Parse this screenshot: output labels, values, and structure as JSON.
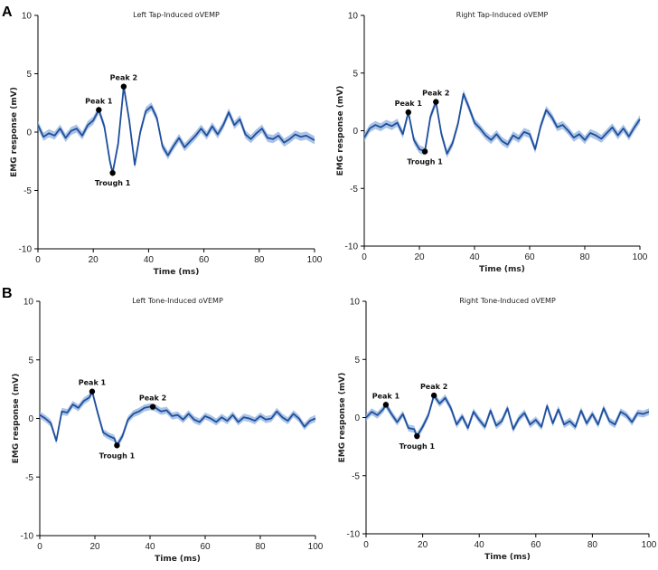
{
  "figure": {
    "panel_labels": [
      "A",
      "B"
    ]
  },
  "chart_data": [
    {
      "id": "left-tap",
      "panel": "A",
      "type": "line",
      "title": "Left Tap-Induced oVEMP",
      "xlabel": "Time (ms)",
      "ylabel": "EMG response (mV)",
      "xlim": [
        0,
        100
      ],
      "ylim": [
        -10,
        10
      ],
      "xticks": [
        0,
        20,
        40,
        60,
        80,
        100
      ],
      "yticks": [
        -10,
        -5,
        0,
        5,
        10
      ],
      "band_halfwidth": 0.35,
      "series": [
        {
          "name": "mean",
          "color": "#1f4e9c",
          "x": [
            0,
            2,
            4,
            6,
            8,
            10,
            12,
            14,
            16,
            18,
            20,
            22,
            24,
            26,
            27,
            29,
            31,
            33,
            35,
            37,
            39,
            41,
            43,
            45,
            47,
            49,
            51,
            53,
            55,
            57,
            59,
            61,
            63,
            65,
            67,
            69,
            71,
            73,
            75,
            77,
            79,
            81,
            83,
            85,
            87,
            89,
            91,
            93,
            95,
            97,
            100
          ],
          "y": [
            0.6,
            -0.4,
            -0.1,
            -0.3,
            0.3,
            -0.5,
            0.1,
            0.3,
            -0.3,
            0.6,
            1.0,
            1.9,
            0.5,
            -2.5,
            -3.5,
            -1.0,
            3.9,
            1.0,
            -2.8,
            0.0,
            1.8,
            2.2,
            1.2,
            -1.2,
            -2.0,
            -1.2,
            -0.5,
            -1.3,
            -0.8,
            -0.3,
            0.3,
            -0.3,
            0.5,
            -0.2,
            0.6,
            1.7,
            0.6,
            1.1,
            -0.2,
            -0.6,
            -0.1,
            0.3,
            -0.5,
            -0.6,
            -0.3,
            -0.9,
            -0.6,
            -0.2,
            -0.4,
            -0.3,
            -0.7
          ]
        }
      ],
      "annotations": [
        {
          "label": "Peak 1",
          "x": 22,
          "y": 1.9,
          "pos": "above"
        },
        {
          "label": "Trough 1",
          "x": 27,
          "y": -3.5,
          "pos": "below"
        },
        {
          "label": "Peak 2",
          "x": 31,
          "y": 3.9,
          "pos": "above"
        }
      ]
    },
    {
      "id": "right-tap",
      "panel": "A",
      "type": "line",
      "title": "Right Tap-Induced oVEMP",
      "xlabel": "Time (ms)",
      "ylabel": "EMG response (mV)",
      "xlim": [
        0,
        100
      ],
      "ylim": [
        -10,
        10
      ],
      "xticks": [
        0,
        20,
        40,
        60,
        80,
        100
      ],
      "yticks": [
        -10,
        -5,
        0,
        5,
        10
      ],
      "band_halfwidth": 0.35,
      "series": [
        {
          "name": "mean",
          "color": "#1f4e9c",
          "x": [
            0,
            2,
            4,
            6,
            8,
            10,
            12,
            14,
            16,
            18,
            20,
            22,
            24,
            26,
            28,
            30,
            32,
            34,
            36,
            38,
            40,
            42,
            44,
            46,
            48,
            50,
            52,
            54,
            56,
            58,
            60,
            62,
            64,
            66,
            68,
            70,
            72,
            74,
            76,
            78,
            80,
            82,
            84,
            86,
            88,
            90,
            92,
            94,
            96,
            98,
            100
          ],
          "y": [
            -0.6,
            0.2,
            0.5,
            0.3,
            0.6,
            0.4,
            0.7,
            -0.3,
            1.6,
            -0.8,
            -1.6,
            -1.8,
            1.2,
            2.5,
            -0.3,
            -2.0,
            -1.1,
            0.6,
            3.2,
            2.0,
            0.7,
            0.2,
            -0.4,
            -0.8,
            -0.3,
            -0.9,
            -1.2,
            -0.4,
            -0.7,
            -0.1,
            -0.3,
            -1.6,
            0.4,
            1.8,
            1.2,
            0.3,
            0.5,
            0.0,
            -0.6,
            -0.3,
            -0.8,
            -0.2,
            -0.4,
            -0.7,
            -0.2,
            0.3,
            -0.4,
            0.2,
            -0.5,
            0.3,
            1.0
          ]
        }
      ],
      "annotations": [
        {
          "label": "Peak 1",
          "x": 16,
          "y": 1.6,
          "pos": "above"
        },
        {
          "label": "Trough 1",
          "x": 22,
          "y": -1.8,
          "pos": "below"
        },
        {
          "label": "Peak 2",
          "x": 26,
          "y": 2.5,
          "pos": "above"
        }
      ]
    },
    {
      "id": "left-tone",
      "panel": "B",
      "type": "line",
      "title": "Left Tone-Induced oVEMP",
      "xlabel": "Time (ms)",
      "ylabel": "EMG response (mV)",
      "xlim": [
        0,
        100
      ],
      "ylim": [
        -10,
        10
      ],
      "xticks": [
        0,
        20,
        40,
        60,
        80,
        100
      ],
      "yticks": [
        -10,
        -5,
        0,
        5,
        10
      ],
      "band_halfwidth": 0.3,
      "series": [
        {
          "name": "mean",
          "color": "#1f4e9c",
          "x": [
            0,
            2,
            4,
            6,
            8,
            10,
            12,
            14,
            16,
            18,
            19,
            21,
            23,
            25,
            27,
            28,
            30,
            32,
            34,
            36,
            38,
            40,
            42,
            44,
            46,
            48,
            50,
            52,
            54,
            56,
            58,
            60,
            62,
            64,
            66,
            68,
            70,
            72,
            74,
            76,
            78,
            80,
            82,
            84,
            86,
            88,
            90,
            92,
            94,
            96,
            98,
            100
          ],
          "y": [
            0.3,
            0.0,
            -0.4,
            -1.9,
            0.6,
            0.5,
            1.2,
            0.9,
            1.5,
            1.8,
            2.3,
            0.5,
            -1.2,
            -1.5,
            -1.7,
            -2.3,
            -1.5,
            -0.1,
            0.4,
            0.6,
            0.9,
            1.0,
            0.9,
            0.6,
            0.7,
            0.2,
            0.3,
            -0.1,
            0.4,
            -0.1,
            -0.3,
            0.2,
            0.0,
            -0.3,
            0.1,
            -0.2,
            0.3,
            -0.3,
            0.1,
            0.0,
            -0.2,
            0.2,
            -0.1,
            0.0,
            0.6,
            0.1,
            -0.2,
            0.4,
            0.0,
            -0.7,
            -0.2,
            0.0
          ]
        }
      ],
      "annotations": [
        {
          "label": "Peak 1",
          "x": 19,
          "y": 2.3,
          "pos": "above"
        },
        {
          "label": "Trough 1",
          "x": 28,
          "y": -2.3,
          "pos": "below"
        },
        {
          "label": "Peak 2",
          "x": 41,
          "y": 1.0,
          "pos": "above"
        }
      ]
    },
    {
      "id": "right-tone",
      "panel": "B",
      "type": "line",
      "title": "Right Tone-Induced oVEMP",
      "xlabel": "Time (ms)",
      "ylabel": "EMG response (mV)",
      "xlim": [
        0,
        100
      ],
      "ylim": [
        -10,
        10
      ],
      "xticks": [
        0,
        20,
        40,
        60,
        80,
        100
      ],
      "yticks": [
        -10,
        -5,
        0,
        5,
        10
      ],
      "band_halfwidth": 0.3,
      "series": [
        {
          "name": "mean",
          "color": "#1f4e9c",
          "x": [
            0,
            2,
            4,
            6,
            7,
            9,
            11,
            13,
            15,
            17,
            18,
            20,
            22,
            24,
            26,
            28,
            30,
            32,
            34,
            36,
            38,
            40,
            42,
            44,
            46,
            48,
            50,
            52,
            54,
            56,
            58,
            60,
            62,
            64,
            66,
            68,
            70,
            72,
            74,
            76,
            78,
            80,
            82,
            84,
            86,
            88,
            90,
            92,
            94,
            96,
            98,
            100
          ],
          "y": [
            0.0,
            0.5,
            0.2,
            0.7,
            1.1,
            0.3,
            -0.4,
            0.3,
            -0.9,
            -1.0,
            -1.6,
            -0.8,
            0.2,
            1.9,
            1.2,
            1.7,
            0.8,
            -0.6,
            0.1,
            -0.9,
            0.5,
            -0.2,
            -0.8,
            0.6,
            -0.7,
            -0.3,
            0.8,
            -1.0,
            -0.1,
            0.4,
            -0.6,
            -0.2,
            -0.8,
            1.0,
            -0.5,
            0.7,
            -0.6,
            -0.3,
            -0.8,
            0.6,
            -0.5,
            0.3,
            -0.6,
            0.8,
            -0.3,
            -0.6,
            0.5,
            0.2,
            -0.4,
            0.4,
            0.3,
            0.5
          ]
        }
      ],
      "annotations": [
        {
          "label": "Peak 1",
          "x": 7,
          "y": 1.1,
          "pos": "above"
        },
        {
          "label": "Trough 1",
          "x": 18,
          "y": -1.6,
          "pos": "below"
        },
        {
          "label": "Peak 2",
          "x": 24,
          "y": 1.9,
          "pos": "above"
        }
      ]
    }
  ]
}
